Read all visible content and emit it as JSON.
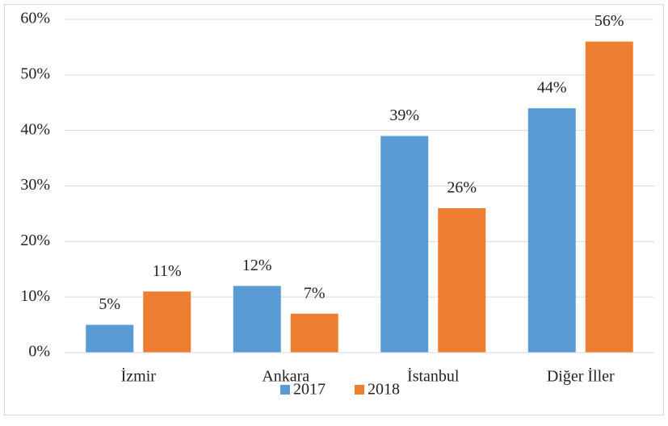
{
  "chart_data": {
    "type": "bar",
    "categories": [
      "İzmir",
      "Ankara",
      "İstanbul",
      "Diğer İller"
    ],
    "series": [
      {
        "name": "2017",
        "color": "#5b9bd5",
        "values": [
          5,
          12,
          39,
          44
        ],
        "value_labels": [
          "5%",
          "12%",
          "39%",
          "44%"
        ]
      },
      {
        "name": "2018",
        "color": "#ed7d31",
        "values": [
          11,
          7,
          26,
          56
        ],
        "value_labels": [
          "11%",
          "7%",
          "26%",
          "56%"
        ]
      }
    ],
    "ylim": [
      0,
      60
    ],
    "yticks": [
      {
        "value": 0,
        "label": "0%"
      },
      {
        "value": 10,
        "label": "10%"
      },
      {
        "value": 20,
        "label": "20%"
      },
      {
        "value": 30,
        "label": "30%"
      },
      {
        "value": 40,
        "label": "40%"
      },
      {
        "value": 50,
        "label": "50%"
      },
      {
        "value": 60,
        "label": "60%"
      }
    ],
    "grid": true,
    "legend": "bottom"
  }
}
